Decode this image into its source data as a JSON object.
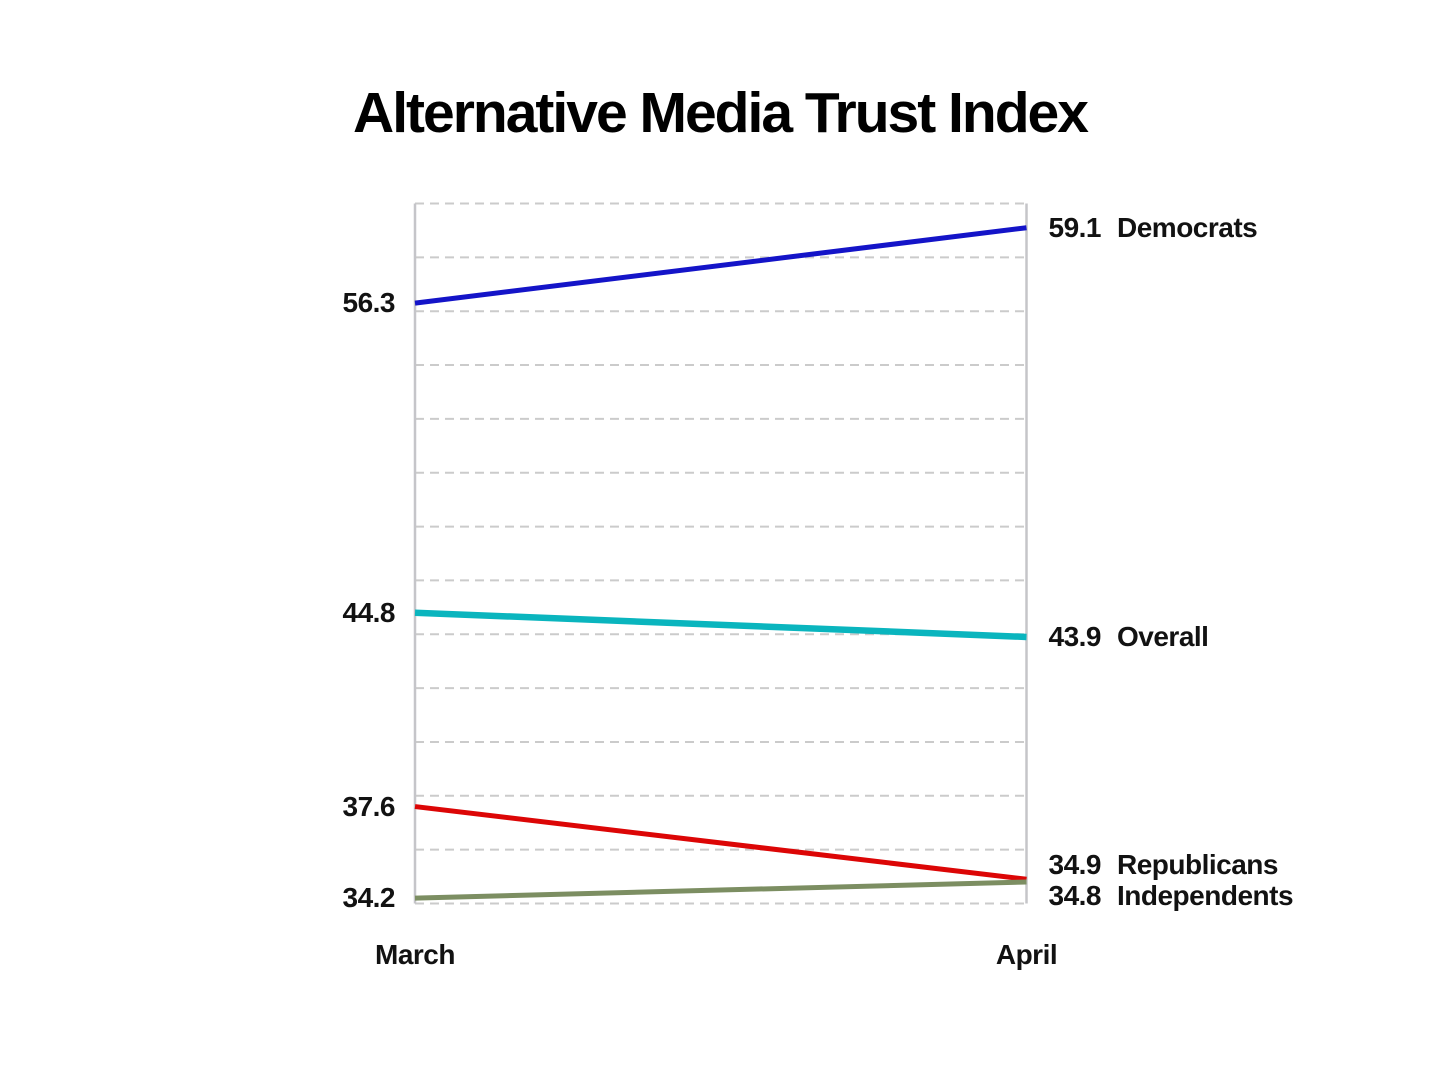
{
  "title": "Alternative Media Trust Index",
  "colors": {
    "background": "#ffffff",
    "title_text": "#000000",
    "label_text": "#121212",
    "gridline": "#cbcbcb",
    "plot_border": "#c5c5c9"
  },
  "chart_data": {
    "type": "line",
    "subtype": "slope-chart",
    "title": "Alternative Media Trust Index",
    "categories": [
      "March",
      "April"
    ],
    "series": [
      {
        "name": "Democrats",
        "values": [
          56.3,
          59.1
        ],
        "color": "#1414c8",
        "width": 5
      },
      {
        "name": "Overall",
        "values": [
          44.8,
          43.9
        ],
        "color": "#0ab5be",
        "width": 6.5
      },
      {
        "name": "Republicans",
        "values": [
          37.6,
          34.9
        ],
        "color": "#dc0606",
        "width": 5
      },
      {
        "name": "Independents",
        "values": [
          34.2,
          34.8
        ],
        "color": "#7c8e62",
        "width": 5
      }
    ],
    "xlabel": "",
    "ylabel": "",
    "ylim": [
      34,
      60
    ],
    "grid_step": 2,
    "grid": "horizontal-dashed",
    "legend_position": "inline-right-of-lines",
    "value_labels": "start-values-left, end-values-with-names-right"
  }
}
